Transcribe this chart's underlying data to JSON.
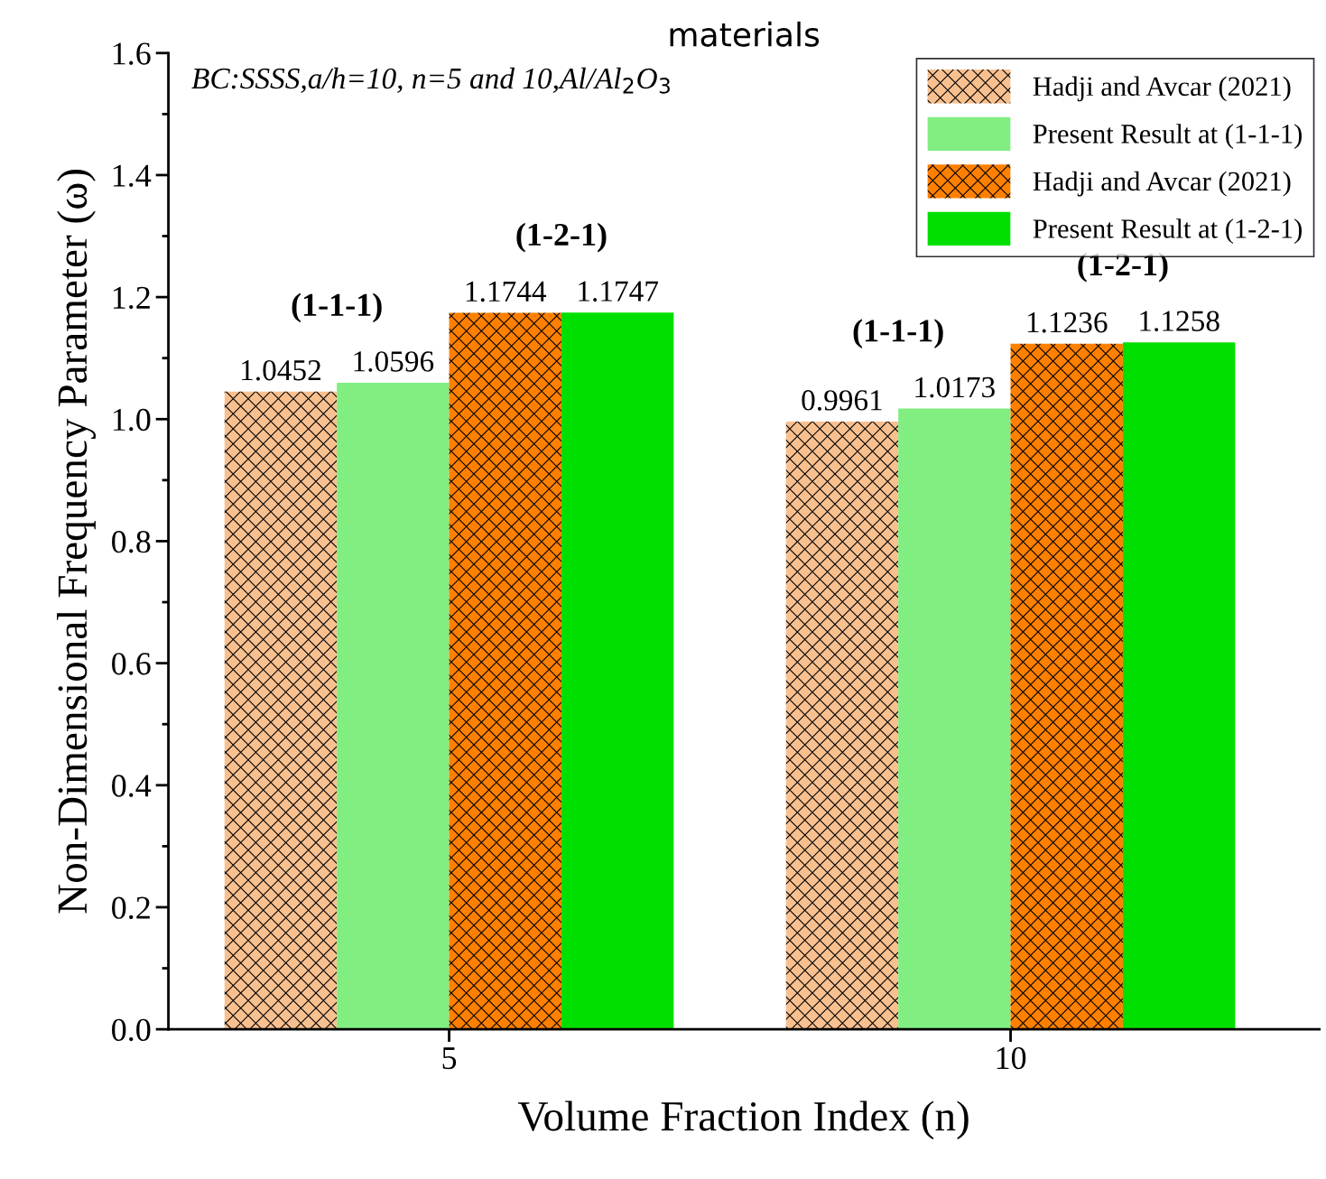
{
  "chart_data": {
    "type": "bar",
    "title": "materials",
    "xlabel": "Volume Fraction Index (n)",
    "ylabel": "Non-Dimensional Frequency Parameter (ω)",
    "categories": [
      "5",
      "10"
    ],
    "series": [
      {
        "name": "Hadji and Avcar (2021)",
        "color": "#f9c08f",
        "values": [
          1.0452,
          0.9961
        ]
      },
      {
        "name": "Present Result at (1-1-1)",
        "color": "#80ee80",
        "values": [
          1.0596,
          1.0173
        ]
      },
      {
        "name": "Hadji and Avcar (2021)",
        "color": "#ff8000",
        "values": [
          1.1744,
          1.1236
        ]
      },
      {
        "name": "Present Result at (1-2-1)",
        "color": "#00e000",
        "values": [
          1.1747,
          1.1258
        ]
      }
    ],
    "ylim": [
      0,
      1.6
    ],
    "yticks": [
      {
        "value": 0,
        "label": "0.0"
      },
      0.2,
      0.4,
      0.6,
      0.8,
      {
        "value": 1,
        "label": "1.0"
      },
      1.2,
      1.4,
      1.6
    ],
    "data_labels": true,
    "legend": "top right",
    "grid": false,
    "annotations": [
      "BC:SSSS,a/h=10, n=5 and 10,Al/Al$_{2}$O$_{3}$",
      "(1-1-1)",
      "(1-2-1)",
      "(1-1-1)",
      "(1-2-1)"
    ]
  }
}
